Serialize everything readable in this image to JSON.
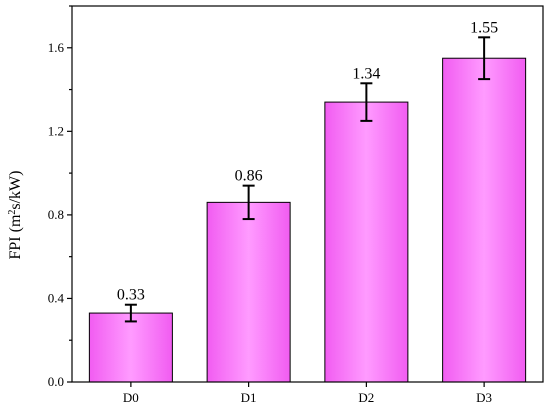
{
  "chart_data": {
    "type": "bar",
    "categories": [
      "D0",
      "D1",
      "D2",
      "D3"
    ],
    "values": [
      0.33,
      0.86,
      1.34,
      1.55
    ],
    "value_labels": [
      "0.33",
      "0.86",
      "1.34",
      "1.55"
    ],
    "errors": [
      0.04,
      0.08,
      0.09,
      0.1
    ],
    "title": "",
    "xlabel": "",
    "ylabel_parts": [
      "FPI (m",
      "2",
      "s/kW)"
    ],
    "ylim": [
      0,
      1.8
    ],
    "yticks": [
      0.0,
      0.4,
      0.8,
      1.2,
      1.6
    ],
    "ytick_labels": [
      "0.0",
      "0.4",
      "0.8",
      "1.2",
      "1.6"
    ],
    "minor_ytick_step": 0.2,
    "grid": false,
    "legend": "none",
    "colors": {
      "bar_center": "#ff9bff",
      "bar_edge": "#f15cf1",
      "bar_outline": "#000000",
      "axis": "#000000"
    }
  }
}
